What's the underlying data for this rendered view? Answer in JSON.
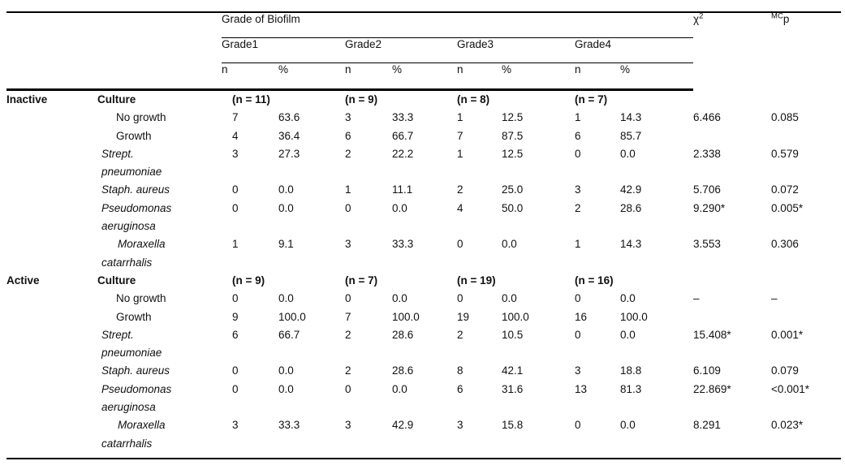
{
  "header": {
    "span_label": "Grade of Biofilm",
    "grades": [
      "Grade1",
      "Grade2",
      "Grade3",
      "Grade4"
    ],
    "sub_n": "n",
    "sub_pct": "%",
    "chi": {
      "base": "χ",
      "sup": "2"
    },
    "mcp": {
      "sup": "MC",
      "base": "p"
    }
  },
  "sections": [
    {
      "group": "Inactive",
      "culture_label": "Culture",
      "counts": [
        "(n = 11)",
        "(n = 9)",
        "(n = 8)",
        "(n = 7)"
      ],
      "rows": [
        {
          "label_lines": [
            "No growth"
          ],
          "style": "plain",
          "indent": 2,
          "values": [
            "7",
            "63.6",
            "3",
            "33.3",
            "1",
            "12.5",
            "1",
            "14.3"
          ],
          "chi": "6.466",
          "p": "0.085"
        },
        {
          "label_lines": [
            "Growth"
          ],
          "style": "plain",
          "indent": 2,
          "values": [
            "4",
            "36.4",
            "6",
            "66.7",
            "7",
            "87.5",
            "6",
            "85.7"
          ],
          "chi": "",
          "p": ""
        },
        {
          "label_lines": [
            "Strept.",
            "pneumoniae"
          ],
          "style": "italic",
          "indent": 1,
          "values": [
            "3",
            "27.3",
            "2",
            "22.2",
            "1",
            "12.5",
            "0",
            "0.0"
          ],
          "chi": "2.338",
          "p": "0.579"
        },
        {
          "label_lines": [
            "Staph. aureus"
          ],
          "style": "italic",
          "indent": 1,
          "values": [
            "0",
            "0.0",
            "1",
            "11.1",
            "2",
            "25.0",
            "3",
            "42.9"
          ],
          "chi": "5.706",
          "p": "0.072"
        },
        {
          "label_lines": [
            "Pseudomonas",
            "aeruginosa"
          ],
          "style": "italic",
          "indent": 1,
          "values": [
            "0",
            "0.0",
            "0",
            "0.0",
            "4",
            "50.0",
            "2",
            "28.6"
          ],
          "chi": "9.290*",
          "p": "0.005*"
        },
        {
          "label_lines": [
            "Moraxella",
            "catarrhalis"
          ],
          "style": "italic",
          "indent": 1,
          "first_line_indent": true,
          "values": [
            "1",
            "9.1",
            "3",
            "33.3",
            "0",
            "0.0",
            "1",
            "14.3"
          ],
          "chi": "3.553",
          "p": "0.306"
        }
      ]
    },
    {
      "group": "Active",
      "culture_label": "Culture",
      "counts": [
        "(n = 9)",
        "(n = 7)",
        "(n = 19)",
        "(n = 16)"
      ],
      "rows": [
        {
          "label_lines": [
            "No growth"
          ],
          "style": "plain",
          "indent": 2,
          "values": [
            "0",
            "0.0",
            "0",
            "0.0",
            "0",
            "0.0",
            "0",
            "0.0"
          ],
          "chi": "–",
          "p": "–"
        },
        {
          "label_lines": [
            "Growth"
          ],
          "style": "plain",
          "indent": 2,
          "values": [
            "9",
            "100.0",
            "7",
            "100.0",
            "19",
            "100.0",
            "16",
            "100.0"
          ],
          "chi": "",
          "p": ""
        },
        {
          "label_lines": [
            "Strept.",
            "pneumoniae"
          ],
          "style": "italic",
          "indent": 1,
          "values": [
            "6",
            "66.7",
            "2",
            "28.6",
            "2",
            "10.5",
            "0",
            "0.0"
          ],
          "chi": "15.408*",
          "p": "0.001*"
        },
        {
          "label_lines": [
            "Staph. aureus"
          ],
          "style": "italic",
          "indent": 1,
          "values": [
            "0",
            "0.0",
            "2",
            "28.6",
            "8",
            "42.1",
            "3",
            "18.8"
          ],
          "chi": "6.109",
          "p": "0.079"
        },
        {
          "label_lines": [
            "Pseudomonas",
            "aeruginosa"
          ],
          "style": "italic",
          "indent": 1,
          "values": [
            "0",
            "0.0",
            "0",
            "0.0",
            "6",
            "31.6",
            "13",
            "81.3"
          ],
          "chi": "22.869*",
          "p": "<0.001*"
        },
        {
          "label_lines": [
            "Moraxella",
            "catarrhalis"
          ],
          "style": "italic",
          "indent": 1,
          "first_line_indent": true,
          "values": [
            "3",
            "33.3",
            "3",
            "42.9",
            "3",
            "15.8",
            "0",
            "0.0"
          ],
          "chi": "8.291",
          "p": "0.023*"
        }
      ]
    }
  ]
}
